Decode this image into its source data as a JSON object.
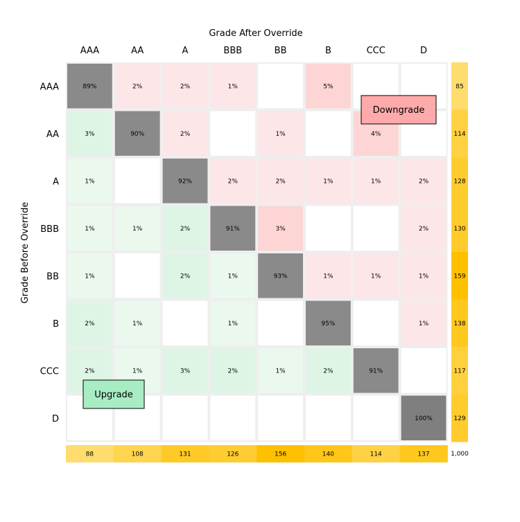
{
  "chart_data": {
    "type": "heatmap",
    "title": "Grade After Override",
    "xlabel": "Grade After Override",
    "ylabel": "Grade Before Override",
    "rows": [
      "AAA",
      "AA",
      "A",
      "BBB",
      "BB",
      "B",
      "CCC",
      "D"
    ],
    "cols": [
      "AAA",
      "AA",
      "A",
      "BBB",
      "BB",
      "B",
      "CCC",
      "D"
    ],
    "cells": [
      [
        "89%",
        "2%",
        "2%",
        "1%",
        "",
        "5%",
        "",
        ""
      ],
      [
        "3%",
        "90%",
        "2%",
        "",
        "1%",
        "",
        "4%",
        ""
      ],
      [
        "1%",
        "",
        "92%",
        "2%",
        "2%",
        "1%",
        "1%",
        "2%"
      ],
      [
        "1%",
        "1%",
        "2%",
        "91%",
        "3%",
        "",
        "",
        "2%"
      ],
      [
        "1%",
        "",
        "2%",
        "1%",
        "93%",
        "1%",
        "1%",
        "1%"
      ],
      [
        "2%",
        "1%",
        "",
        "1%",
        "",
        "95%",
        "",
        "1%"
      ],
      [
        "2%",
        "1%",
        "3%",
        "2%",
        "1%",
        "2%",
        "91%",
        ""
      ],
      [
        "",
        "",
        "",
        "",
        "",
        "",
        "",
        "100%"
      ]
    ],
    "row_totals": [
      85,
      114,
      128,
      130,
      159,
      138,
      117,
      129
    ],
    "row_total_labels": [
      "85",
      "114",
      "128",
      "130",
      "159",
      "138",
      "117",
      "129"
    ],
    "col_totals": [
      88,
      108,
      131,
      126,
      156,
      140,
      114,
      137
    ],
    "col_total_labels": [
      "88",
      "108",
      "131",
      "126",
      "156",
      "140",
      "114",
      "137"
    ],
    "grand_total": "1,000",
    "legend": {
      "downgrade": "Downgrade",
      "upgrade": "Upgrade",
      "placement_downgrade": "upper-right",
      "placement_upgrade": "lower-left"
    },
    "colors": {
      "diagonal_high": "#7f7f7f",
      "diagonal_low": "#8a8a8a",
      "downgrade_dark": "#fdd5d5",
      "downgrade_light": "#fde6e8",
      "upgrade_dark": "#def5e6",
      "upgrade_light": "#eaf8ee",
      "empty": "#ffffff",
      "grid": "#eeeeee",
      "total_low": "#ffdc6e",
      "total_high": "#ffc000",
      "downgrade_box": "#ffaaaa",
      "upgrade_box": "#a8ecc4"
    }
  }
}
